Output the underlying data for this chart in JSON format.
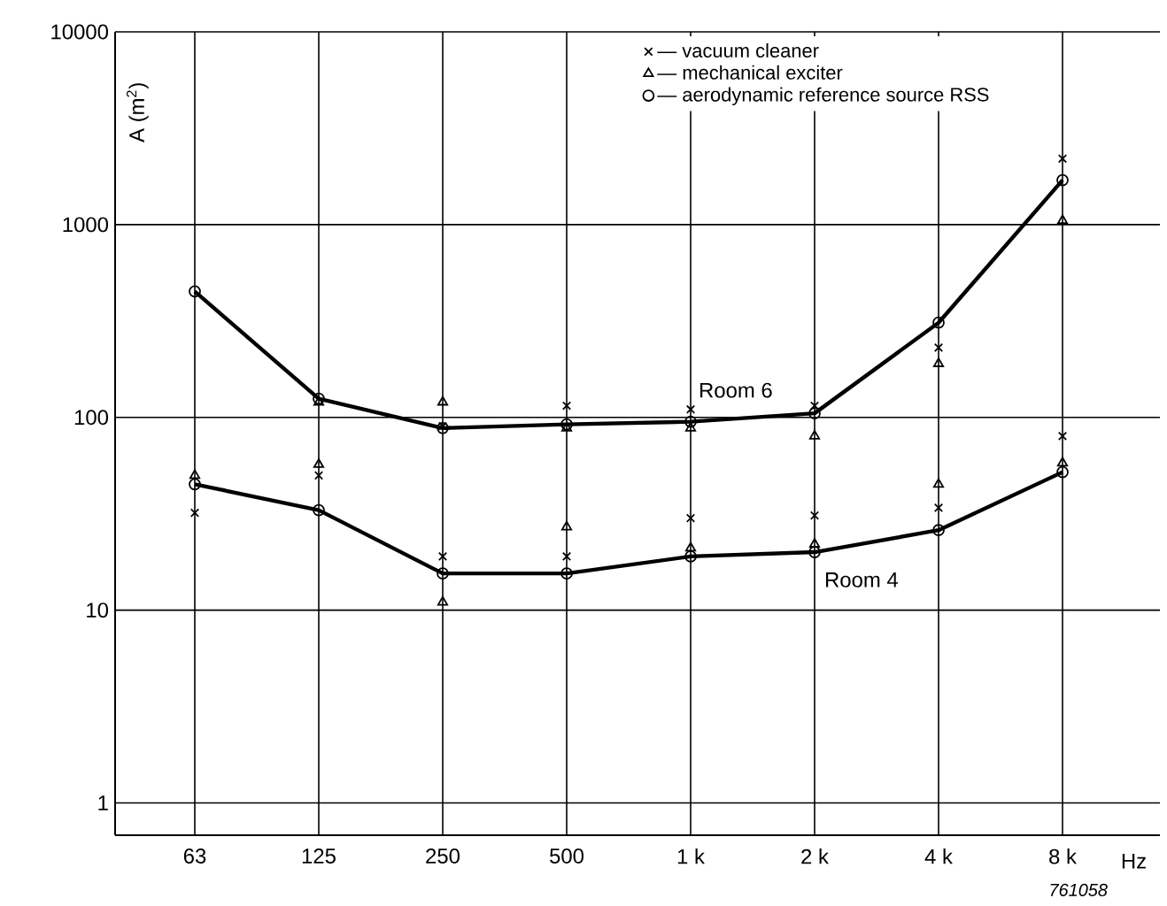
{
  "chart_data": {
    "type": "line",
    "ylabel": "A (m$^{2}$)",
    "xlabel": "Hz",
    "categories": [
      "63",
      "125",
      "250",
      "500",
      "1 k",
      "2 k",
      "4 k",
      "8 k"
    ],
    "ylim": [
      0.68,
      10000
    ],
    "yticks": [
      1,
      10,
      100,
      1000,
      10000
    ],
    "log": true,
    "grid": true,
    "legend": "top",
    "series": [
      {
        "name": "— vacuum cleaner",
        "type": "scatter",
        "marker": "cross",
        "color": "#000000",
        "values": [
          null,
          null,
          90,
          115,
          110,
          115,
          230,
          2200
        ]
      },
      {
        "name": "— mechanical exciter",
        "type": "scatter",
        "marker": "triangle",
        "color": "#000000",
        "values": [
          null,
          120,
          120,
          88,
          88,
          80,
          190,
          1050
        ]
      },
      {
        "name": "— aerodynamic reference source RSS",
        "marker": "circle",
        "color": "#000000",
        "values": [
          450,
          125,
          88,
          92,
          95,
          105,
          310,
          1700
        ]
      },
      {
        "type": "scatter",
        "marker": "cross",
        "color": "#000000",
        "values": [
          32,
          50,
          19,
          19,
          30,
          31,
          34,
          80
        ]
      },
      {
        "type": "scatter",
        "marker": "triangle",
        "color": "#000000",
        "values": [
          50,
          57,
          11,
          27,
          21,
          22,
          45,
          58
        ]
      },
      {
        "marker": "circle",
        "color": "#000000",
        "values": [
          45,
          33,
          15.5,
          15.5,
          19,
          20,
          26,
          52
        ]
      }
    ],
    "annotations": [
      {
        "text": "Room 6",
        "x": "1 k",
        "y": 95
      },
      {
        "text": "Room 4",
        "x": "2 k",
        "y": 20
      },
      "761058"
    ]
  }
}
